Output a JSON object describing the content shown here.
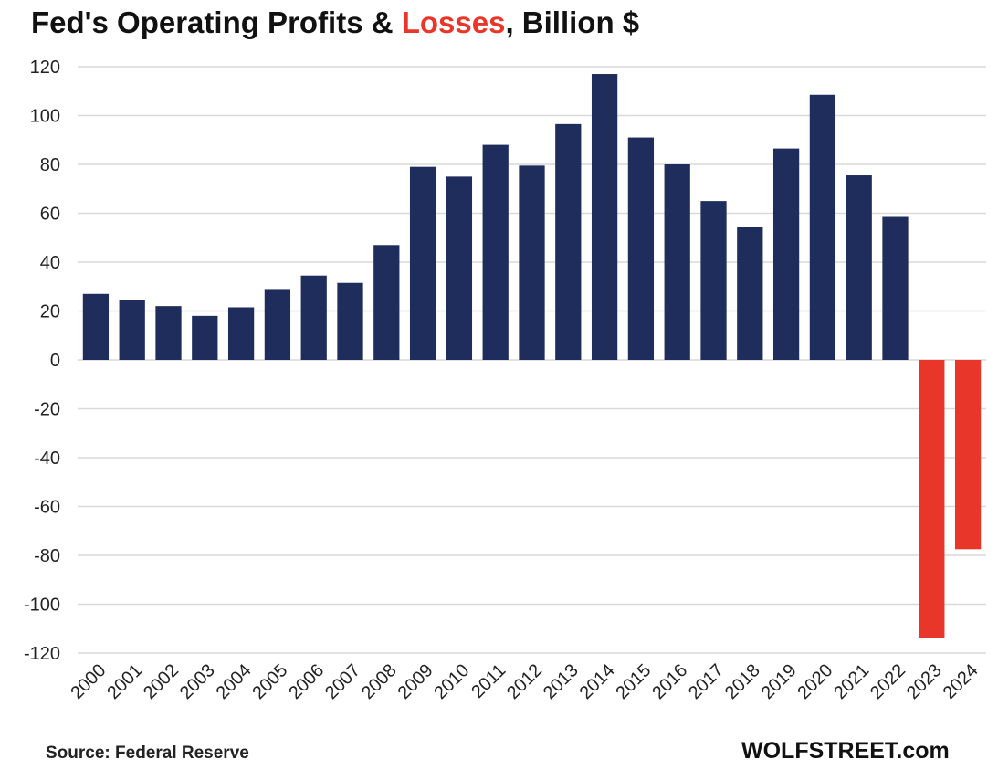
{
  "chart_data": {
    "type": "bar",
    "title": {
      "part1": "Fed's Operating Profits & ",
      "part2": "Losses",
      "part3": ", Billion $"
    },
    "categories": [
      "2000",
      "2001",
      "2002",
      "2003",
      "2004",
      "2005",
      "2006",
      "2007",
      "2008",
      "2009",
      "2010",
      "2011",
      "2012",
      "2013",
      "2014",
      "2015",
      "2016",
      "2017",
      "2018",
      "2019",
      "2020",
      "2021",
      "2022",
      "2023",
      "2024"
    ],
    "values": [
      27,
      24.5,
      22,
      18,
      21.5,
      29,
      34.5,
      31.5,
      47,
      79,
      75,
      88,
      79.5,
      96.5,
      117,
      91,
      80,
      65,
      54.5,
      86.5,
      108.5,
      75.5,
      58.5,
      -114,
      -77.5
    ],
    "ylim": [
      -120,
      120
    ],
    "yticks": [
      120,
      100,
      80,
      60,
      40,
      20,
      0,
      -20,
      -40,
      -60,
      -80,
      -100,
      -120
    ],
    "xlabel": "",
    "ylabel": "",
    "grid": true,
    "colors": {
      "positive": "#1f2d5c",
      "negative": "#e8362a",
      "grid": "#d9d9d9"
    },
    "source": "Source: Federal Reserve",
    "brand": "WOLFSTREET.com"
  }
}
